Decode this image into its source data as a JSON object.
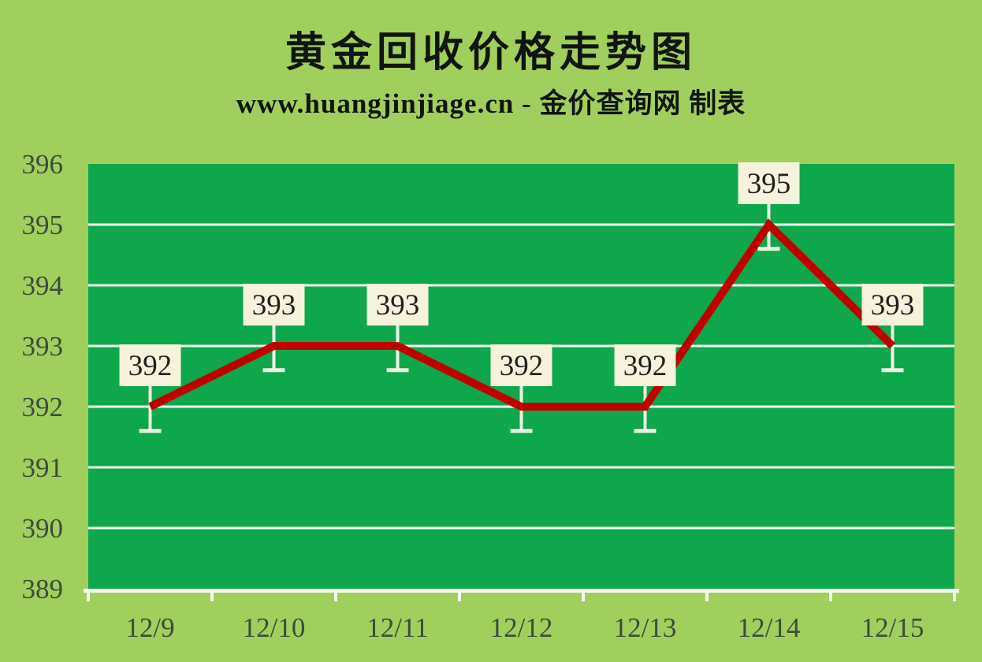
{
  "header": {
    "title": "黄金回收价格走势图",
    "subtitle": "www.huangjinjiage.cn - 金价查询网 制表"
  },
  "chart_data": {
    "type": "line",
    "title": "黄金回收价格走势图",
    "subtitle": "www.huangjinjiage.cn - 金价查询网 制表",
    "categories": [
      "12/9",
      "12/10",
      "12/11",
      "12/12",
      "12/13",
      "12/14",
      "12/15"
    ],
    "series": [
      {
        "name": "黄金回收价格",
        "values": [
          392,
          393,
          393,
          392,
          392,
          395,
          393
        ]
      }
    ],
    "data_labels": [
      "392",
      "393",
      "393",
      "392",
      "392",
      "395",
      "393"
    ],
    "ylim": [
      389,
      396
    ],
    "yticks": [
      389,
      390,
      391,
      392,
      393,
      394,
      395,
      396
    ],
    "gridlines": [
      390,
      391,
      392,
      393,
      394,
      395
    ],
    "error_bar_minus": 0.4,
    "grid": true,
    "legend_position": "none",
    "colors": {
      "page_bg": "#A1CF5D",
      "plot_bg": "#0EA74C",
      "gridline": "#F8FBF2",
      "axis_line": "#F8FBF2",
      "line": "#C00000",
      "error_bar": "#EDF3E3",
      "label_box_bg": "#F7F2DC",
      "label_text": "#1F1F1F",
      "axis_text": "#3D4A3D",
      "title_text": "#101510"
    }
  }
}
